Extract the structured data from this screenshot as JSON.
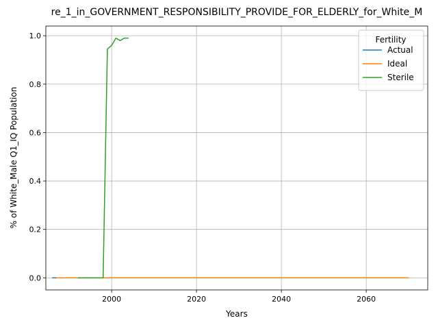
{
  "chart_data": {
    "type": "line",
    "title": "re_1_in_GOVERNMENT_RESPONSIBILITY_PROVIDE_FOR_ELDERLY_for_White_M",
    "xlabel": "Years",
    "ylabel": "% of White_Male Q1_IQ Population",
    "xlim": [
      1984.5,
      2074.5
    ],
    "ylim": [
      -0.05,
      1.04
    ],
    "x_ticks": [
      2000,
      2020,
      2040,
      2060
    ],
    "y_ticks": [
      0.0,
      0.2,
      0.4,
      0.6,
      0.8,
      1.0
    ],
    "x_tick_labels": [
      "2000",
      "2020",
      "2040",
      "2060"
    ],
    "y_tick_labels": [
      "0.0",
      "0.2",
      "0.4",
      "0.6",
      "0.8",
      "1.0"
    ],
    "grid": true,
    "legend": {
      "title": "Fertility",
      "placement": "top-right"
    },
    "series": [
      {
        "name": "Actual",
        "color": "#1f77b4",
        "x": [
          1986,
          1987
        ],
        "y": [
          0.0,
          0.0
        ]
      },
      {
        "name": "Ideal",
        "color": "#ff7f0e",
        "x": [
          1987,
          2000,
          2020,
          2040,
          2060,
          2070
        ],
        "y": [
          0.0,
          0.0,
          0.0,
          0.0,
          0.0,
          0.0
        ]
      },
      {
        "name": "Sterile",
        "color": "#2ca02c",
        "x": [
          1992,
          1998,
          1999,
          2000,
          2001,
          2002,
          2003,
          2004
        ],
        "y": [
          0.0,
          0.0,
          0.945,
          0.96,
          0.99,
          0.98,
          0.99,
          0.99
        ]
      }
    ]
  }
}
